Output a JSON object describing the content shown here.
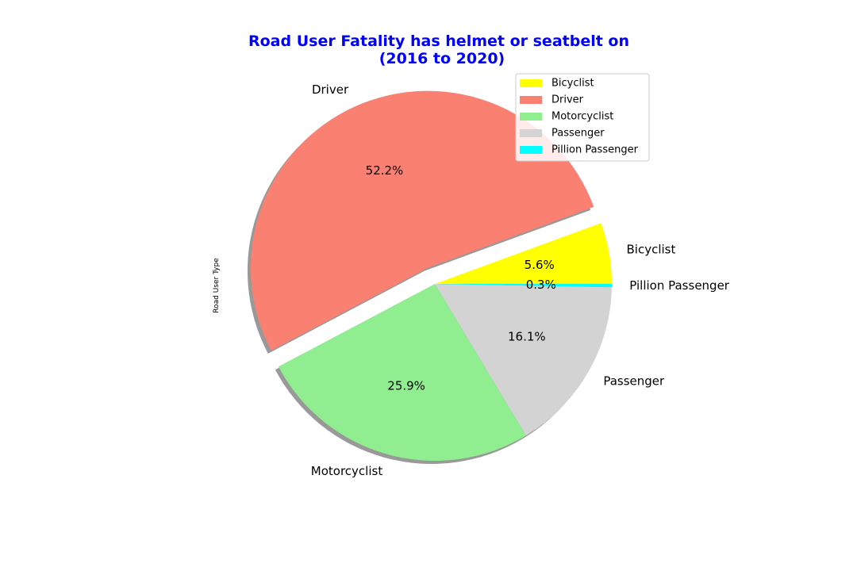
{
  "chart_data": {
    "type": "pie",
    "title_line1": "Road User Fatality has helmet or seatbelt on",
    "title_line2": "(2016 to 2020)",
    "title_color": "#0000ff",
    "ylabel": "Road User Type",
    "shadow": true,
    "start_angle_deg": 0,
    "direction": "counterclockwise",
    "legend_position": "upper right",
    "slices": [
      {
        "label": "Bicyclist",
        "percent": 5.6,
        "pct_text": "5.6%",
        "color": "#ffff00",
        "explode": false
      },
      {
        "label": "Driver",
        "percent": 52.2,
        "pct_text": "52.2%",
        "color": "#fa8072",
        "explode": true
      },
      {
        "label": "Motorcyclist",
        "percent": 25.9,
        "pct_text": "25.9%",
        "color": "#90ee90",
        "explode": false
      },
      {
        "label": "Passenger",
        "percent": 16.1,
        "pct_text": "16.1%",
        "color": "#d3d3d3",
        "explode": false
      },
      {
        "label": "Pillion Passenger",
        "percent": 0.3,
        "pct_text": "0.3%",
        "color": "#00ffff",
        "explode": false
      }
    ]
  }
}
